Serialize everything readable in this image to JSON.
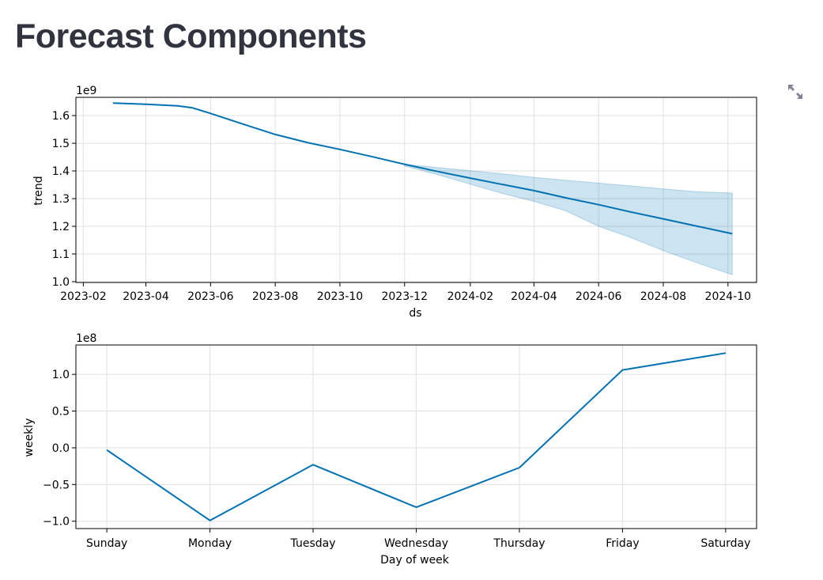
{
  "page": {
    "title": "Forecast Components"
  },
  "toolbar": {
    "expand_icon": "fullscreen-expand-icon"
  },
  "colors": {
    "line": "#0072b2",
    "band": "#0072b2",
    "grid": "#e0e0e0",
    "title": "#31333f"
  },
  "chart_data": [
    {
      "type": "line",
      "xlabel": "ds",
      "ylabel": "trend",
      "offset_label": "1e9",
      "x_type": "date",
      "xlim": [
        "2023-01-25",
        "2024-10-28"
      ],
      "ylim": [
        0.997,
        1.666
      ],
      "x_ticks": [
        "2023-02",
        "2023-04",
        "2023-06",
        "2023-08",
        "2023-10",
        "2023-12",
        "2024-02",
        "2024-04",
        "2024-06",
        "2024-08",
        "2024-10"
      ],
      "y_ticks": [
        "1.0",
        "1.1",
        "1.2",
        "1.3",
        "1.4",
        "1.5",
        "1.6"
      ],
      "grid": true,
      "series": [
        {
          "points": [
            [
              "2023-03-01",
              1.645
            ],
            [
              "2023-04-01",
              1.641
            ],
            [
              "2023-05-01",
              1.635
            ],
            [
              "2023-05-15",
              1.628
            ],
            [
              "2023-06-01",
              1.608
            ],
            [
              "2023-07-01",
              1.57
            ],
            [
              "2023-08-01",
              1.532
            ],
            [
              "2023-09-01",
              1.502
            ],
            [
              "2023-10-01",
              1.478
            ],
            [
              "2023-11-01",
              1.451
            ],
            [
              "2023-12-01",
              1.424
            ],
            [
              "2024-01-01",
              1.398
            ],
            [
              "2024-02-01",
              1.374
            ],
            [
              "2024-03-01",
              1.352
            ],
            [
              "2024-04-01",
              1.329
            ],
            [
              "2024-05-01",
              1.303
            ],
            [
              "2024-06-01",
              1.278
            ],
            [
              "2024-07-01",
              1.252
            ],
            [
              "2024-08-01",
              1.227
            ],
            [
              "2024-09-01",
              1.201
            ],
            [
              "2024-10-05",
              1.173
            ]
          ]
        }
      ],
      "uncertainty": {
        "upper": [
          [
            "2023-12-01",
            1.424
          ],
          [
            "2024-01-01",
            1.412
          ],
          [
            "2024-02-01",
            1.401
          ],
          [
            "2024-03-01",
            1.39
          ],
          [
            "2024-04-01",
            1.377
          ],
          [
            "2024-05-01",
            1.366
          ],
          [
            "2024-06-01",
            1.356
          ],
          [
            "2024-07-01",
            1.346
          ],
          [
            "2024-08-01",
            1.335
          ],
          [
            "2024-09-01",
            1.325
          ],
          [
            "2024-10-05",
            1.32
          ]
        ],
        "lower": [
          [
            "2023-12-01",
            1.418
          ],
          [
            "2024-01-01",
            1.387
          ],
          [
            "2024-02-01",
            1.352
          ],
          [
            "2024-03-01",
            1.32
          ],
          [
            "2024-04-01",
            1.29
          ],
          [
            "2024-05-01",
            1.256
          ],
          [
            "2024-06-01",
            1.2
          ],
          [
            "2024-07-01",
            1.16
          ],
          [
            "2024-08-01",
            1.112
          ],
          [
            "2024-09-01",
            1.069
          ],
          [
            "2024-10-05",
            1.025
          ]
        ]
      }
    },
    {
      "type": "line",
      "xlabel": "Day of week",
      "ylabel": "weekly",
      "offset_label": "1e8",
      "categories": [
        "Sunday",
        "Monday",
        "Tuesday",
        "Wednesday",
        "Thursday",
        "Friday",
        "Saturday"
      ],
      "ylim": [
        -1.1,
        1.4
      ],
      "y_ticks": [
        "−1.0",
        "−0.5",
        "0.0",
        "0.5",
        "1.0"
      ],
      "grid": true,
      "series": [
        {
          "values": [
            -0.03,
            -0.99,
            -0.23,
            -0.81,
            -0.27,
            1.06,
            1.29
          ]
        }
      ]
    }
  ]
}
